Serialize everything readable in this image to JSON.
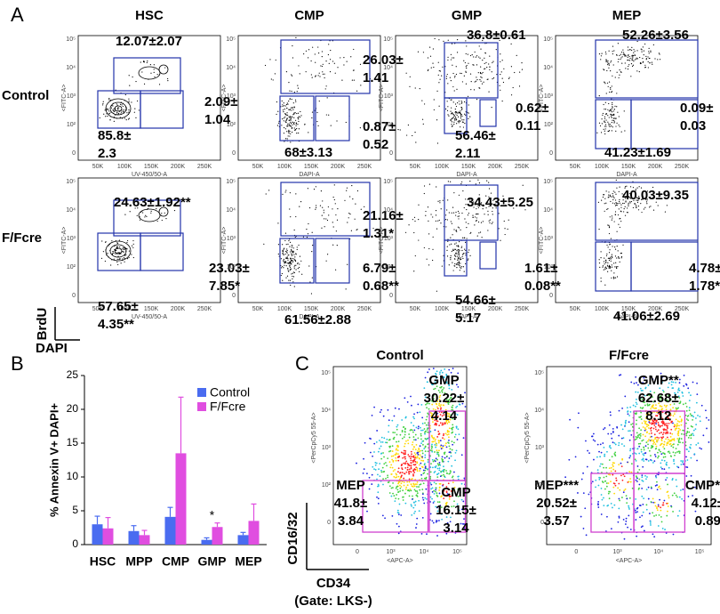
{
  "panel_a": {
    "label": "A",
    "columns": [
      "HSC",
      "CMP",
      "GMP",
      "MEP"
    ],
    "rows": [
      "Control",
      "F/Fcre"
    ],
    "x_axis_labels": [
      "UV-450/50-A",
      "DAPI-A",
      "DAPI-A",
      "DAPI-A"
    ],
    "y_axis_label": "<FITC-A>",
    "x_ticks": [
      "50K",
      "100K",
      "150K",
      "200K",
      "250K"
    ],
    "y_ticks": [
      "0",
      "10²",
      "10³",
      "10⁴",
      "10⁵"
    ],
    "corner_y": "BrdU",
    "corner_x": "DAPI",
    "gates": [
      [
        [
          [
            "12.07±2.07"
          ],
          [
            "2.09±",
            "1.04"
          ],
          [
            "85.8±",
            "2.3"
          ]
        ],
        [
          [
            "26.03±",
            "1.41"
          ],
          [
            "0.87±",
            "0.52"
          ],
          [
            "68±3.13"
          ]
        ],
        [
          [
            "36.8±0.61"
          ],
          [
            "0.62±",
            "0.11"
          ],
          [
            "56.46±",
            "2.11"
          ]
        ],
        [
          [
            "52.26±3.56"
          ],
          [
            "0.09±",
            "0.03"
          ],
          [
            "41.23±1.69"
          ]
        ]
      ],
      [
        [
          [
            "24.63±1.92**"
          ],
          [
            "23.03±",
            "7.85*"
          ],
          [
            "57.65±",
            "4.35**"
          ]
        ],
        [
          [
            "21.16±",
            "1.31*"
          ],
          [
            "6.79±",
            "0.68**"
          ],
          [
            "61.56±2.88"
          ]
        ],
        [
          [
            "34.43±5.25"
          ],
          [
            "1.61±",
            "0.08**"
          ],
          [
            "54.66±",
            "5.17"
          ]
        ],
        [
          [
            "40.03±9.35"
          ],
          [
            "4.78±",
            "1.78*"
          ],
          [
            "41.06±2.69"
          ]
        ]
      ]
    ]
  },
  "chart_data": {
    "type": "bar",
    "label": "B",
    "y_label": "% Annexin V+ DAPI+",
    "categories": [
      "HSC",
      "MPP",
      "CMP",
      "GMP",
      "MEP"
    ],
    "series": [
      {
        "name": "Control",
        "color": "#4a6cf0",
        "values": [
          3.0,
          2.0,
          4.1,
          0.7,
          1.4
        ],
        "errors": [
          1.2,
          0.8,
          1.4,
          0.3,
          0.4
        ]
      },
      {
        "name": "F/Fcre",
        "color": "#e04ee0",
        "values": [
          2.4,
          1.4,
          13.5,
          2.6,
          3.5
        ],
        "errors": [
          1.6,
          0.7,
          8.3,
          0.6,
          2.5
        ]
      }
    ],
    "ylim": [
      0,
      25
    ],
    "yticks": [
      0,
      5,
      10,
      15,
      20,
      25
    ],
    "annotation": "*"
  },
  "panel_c": {
    "label": "C",
    "titles": [
      "Control",
      "F/Fcre"
    ],
    "y_axis_label": "<PerCpCy5 55-A>",
    "x_axis_label": "<APC-A>",
    "x_ticks": [
      "0",
      "10³",
      "10⁴",
      "10⁵"
    ],
    "y_ticks": [
      "0",
      "10²",
      "10³",
      "10⁴",
      "10⁵"
    ],
    "corner_y": "CD16/32",
    "corner_x": "CD34",
    "gate_note": "(Gate: LKS-)",
    "gates": [
      [
        [
          "MEP",
          "41.8±",
          "3.84"
        ],
        [
          "GMP",
          "30.22±",
          "4.14"
        ],
        [
          "CMP",
          "16.15±",
          "3.14"
        ]
      ],
      [
        [
          "MEP***",
          "20.52±",
          "3.57"
        ],
        [
          "GMP**",
          "62.68±",
          "8.12"
        ],
        [
          "CMP***",
          "4.12±",
          "0.89"
        ]
      ]
    ]
  }
}
